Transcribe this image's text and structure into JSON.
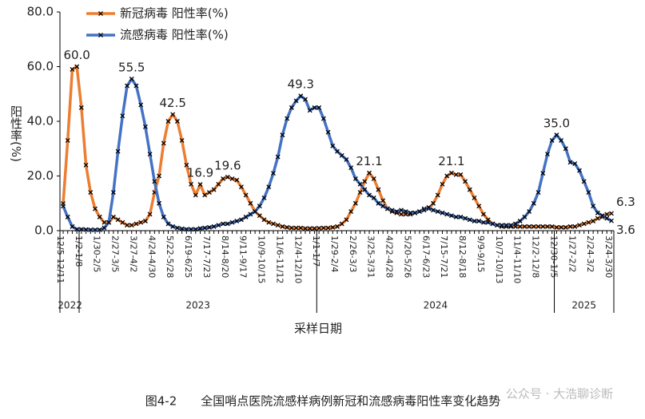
{
  "chart_data": {
    "type": "line",
    "ylabel": "阳性率(%)",
    "xlabel": "采样日期",
    "caption": "图4-2　　全国哨点医院流感样病例新冠和流感病毒阳性率变化趋势",
    "watermark": "公众号 · 大浩聊诊断",
    "years": [
      "2022",
      "2023",
      "2024",
      "2025"
    ],
    "ylim": [
      0,
      80
    ],
    "yticks": [
      {
        "value": 0,
        "label": "0.0"
      },
      {
        "value": 20,
        "label": "20.0"
      },
      {
        "value": 40,
        "label": "40.0"
      },
      {
        "value": 60,
        "label": "60.0"
      },
      {
        "value": 80,
        "label": "80.0"
      }
    ],
    "grid": false,
    "legend": "top",
    "categories": [
      "12/5-12/11",
      null,
      null,
      null,
      "1/2-1/8",
      null,
      null,
      null,
      "1/30-2/5",
      null,
      null,
      null,
      "2/27-3/5",
      null,
      null,
      null,
      "3/27-4/2",
      null,
      null,
      null,
      "4/24-4/30",
      null,
      null,
      null,
      "5/22-5/28",
      null,
      null,
      null,
      "6/19-6/25",
      null,
      null,
      null,
      "7/17-7/23",
      null,
      null,
      null,
      "8/14-8/20",
      null,
      null,
      null,
      "9/11-9/17",
      null,
      null,
      null,
      "10/9-10/15",
      null,
      null,
      null,
      "11/6-11/12",
      null,
      null,
      null,
      "12/4-12/10",
      null,
      null,
      null,
      "1/1-1/7",
      null,
      null,
      null,
      "1/29-2/4",
      null,
      null,
      null,
      "2/26-3/3",
      null,
      null,
      null,
      "3/25-3/31",
      null,
      null,
      null,
      "4/22-4/28",
      null,
      null,
      null,
      "5/20-5/26",
      null,
      null,
      null,
      "6/17-6/23",
      null,
      null,
      null,
      "7/15-7/21",
      null,
      null,
      null,
      "8/12-8/18",
      null,
      null,
      null,
      "9/9-9/15",
      null,
      null,
      null,
      "10/7-10/13",
      null,
      null,
      null,
      "11/4-11/10",
      null,
      null,
      null,
      "12/2-12/8",
      null,
      null,
      null,
      "12/30-1/5",
      null,
      null,
      null,
      "1/27-2/2",
      null,
      null,
      null,
      "2/24-3/2",
      null,
      null,
      null,
      "3/24-3/30"
    ],
    "series": [
      {
        "name": "新冠病毒 阳性率(%)",
        "color": "#ED7D31",
        "values": [
          9.9,
          33,
          59,
          60,
          45,
          24,
          14,
          8,
          5,
          3,
          3,
          5,
          4,
          3,
          2,
          2,
          2.5,
          3,
          3.5,
          6,
          14,
          20,
          32,
          40,
          42.5,
          40,
          33,
          24,
          17,
          13,
          16.9,
          13,
          14,
          15,
          17,
          19,
          19.6,
          19,
          18.5,
          16,
          13,
          10,
          7,
          5.5,
          4,
          3,
          2.5,
          2,
          1.5,
          1.2,
          1,
          1,
          1,
          0.8,
          0.8,
          0.8,
          0.9,
          1,
          1,
          1.2,
          1.5,
          2.5,
          4,
          7,
          10,
          14,
          18,
          21.1,
          19,
          15,
          11,
          8,
          7,
          6.5,
          6,
          6,
          6,
          6.5,
          7,
          8,
          8,
          10,
          13,
          17,
          20,
          21.1,
          20.5,
          20.5,
          18,
          15,
          12,
          9,
          6,
          4,
          2.5,
          2,
          1.5,
          1.5,
          1.5,
          1.5,
          1.5,
          1.5,
          1.5,
          1.5,
          1.5,
          1.5,
          1.5,
          1.5,
          1.2,
          1.2,
          1.2,
          1.5,
          1.5,
          2,
          2.5,
          3,
          3.5,
          4.5,
          5,
          6,
          6.3
        ],
        "value_labels": [
          null,
          null,
          null,
          "60.0",
          null,
          null,
          null,
          null,
          null,
          null,
          null,
          null,
          null,
          null,
          null,
          null,
          null,
          null,
          null,
          null,
          null,
          null,
          null,
          null,
          "42.5",
          null,
          null,
          null,
          null,
          null,
          "16.9",
          null,
          null,
          null,
          null,
          null,
          "19.6",
          null,
          null,
          null,
          null,
          null,
          null,
          null,
          null,
          null,
          null,
          null,
          null,
          null,
          null,
          null,
          null,
          null,
          null,
          null,
          null,
          null,
          null,
          null,
          null,
          null,
          null,
          null,
          null,
          null,
          null,
          "21.1",
          null,
          null,
          null,
          null,
          null,
          null,
          null,
          null,
          null,
          null,
          null,
          null,
          null,
          null,
          null,
          null,
          null,
          "21.1",
          null,
          null,
          null,
          null,
          null,
          null,
          null,
          null,
          null,
          null,
          null,
          null,
          null,
          null,
          null,
          null,
          null,
          null,
          null,
          null,
          null,
          null,
          null,
          null,
          null,
          null,
          null,
          null,
          null,
          null,
          null,
          null,
          null,
          null,
          "6.3"
        ]
      },
      {
        "name": "流感病毒 阳性率(%)",
        "color": "#4472C4",
        "values": [
          9,
          5,
          1.5,
          0.5,
          0.5,
          0.4,
          0.3,
          0.3,
          0.3,
          1,
          3,
          14,
          29,
          42,
          53,
          55.5,
          53,
          46,
          38,
          28,
          18,
          10,
          5,
          2.5,
          1.5,
          1,
          0.7,
          0.5,
          0.5,
          0.5,
          0.8,
          1,
          1.2,
          1.5,
          2,
          2.5,
          2.5,
          3,
          3.5,
          4,
          5,
          6,
          7,
          9,
          12,
          16,
          21,
          27,
          35,
          41,
          45,
          47.5,
          49.3,
          48,
          44,
          45,
          45,
          41,
          36,
          31,
          29,
          27.5,
          26,
          23,
          19,
          17,
          15,
          13,
          12,
          10,
          9,
          8,
          7.5,
          7,
          7.5,
          7,
          6.5,
          6.5,
          7,
          7.5,
          8.5,
          7.5,
          7,
          6.5,
          6,
          5.5,
          5,
          5,
          4.5,
          4,
          3.5,
          3.5,
          3,
          3,
          2.5,
          2,
          2,
          2,
          2,
          2.5,
          3.5,
          5,
          7,
          10,
          14,
          21,
          28,
          33,
          35,
          33,
          30,
          25,
          24.5,
          22,
          18,
          14,
          9,
          6.5,
          5.5,
          4.5,
          3.6
        ],
        "value_labels": [
          null,
          null,
          null,
          null,
          null,
          null,
          null,
          null,
          null,
          null,
          null,
          null,
          null,
          null,
          null,
          "55.5",
          null,
          null,
          null,
          null,
          null,
          null,
          null,
          null,
          null,
          null,
          null,
          null,
          null,
          null,
          null,
          null,
          null,
          null,
          null,
          null,
          null,
          null,
          null,
          null,
          null,
          null,
          null,
          null,
          null,
          null,
          null,
          null,
          null,
          null,
          null,
          null,
          "49.3",
          null,
          null,
          null,
          null,
          null,
          null,
          null,
          null,
          null,
          null,
          null,
          null,
          null,
          null,
          null,
          null,
          null,
          null,
          null,
          null,
          null,
          null,
          null,
          null,
          null,
          null,
          null,
          null,
          null,
          null,
          null,
          null,
          null,
          null,
          null,
          null,
          null,
          null,
          null,
          null,
          null,
          null,
          null,
          null,
          null,
          null,
          null,
          null,
          null,
          null,
          null,
          null,
          null,
          null,
          null,
          "35.0",
          null,
          null,
          null,
          null,
          null,
          null,
          null,
          null,
          null,
          null,
          null,
          "3.6"
        ]
      }
    ]
  }
}
